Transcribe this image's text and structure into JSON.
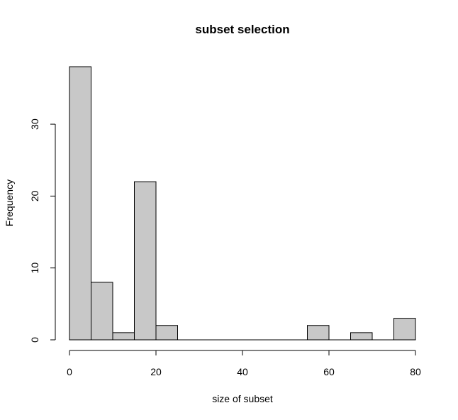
{
  "chart_data": {
    "type": "bar",
    "title": "subset selection",
    "xlabel": "size of subset",
    "ylabel": "Frequency",
    "bin_edges": [
      0,
      5,
      10,
      15,
      20,
      25,
      30,
      35,
      40,
      45,
      50,
      55,
      60,
      65,
      70,
      75,
      80
    ],
    "values": [
      38,
      8,
      1,
      22,
      2,
      0,
      0,
      0,
      0,
      0,
      0,
      2,
      0,
      1,
      0,
      3
    ],
    "xlim": [
      0,
      80
    ],
    "ylim": [
      0,
      38
    ],
    "x_ticks": [
      "0",
      "20",
      "40",
      "60",
      "80"
    ],
    "y_ticks": [
      "0",
      "10",
      "20",
      "30"
    ],
    "grid": false,
    "bar_color": "#c8c8c8"
  }
}
